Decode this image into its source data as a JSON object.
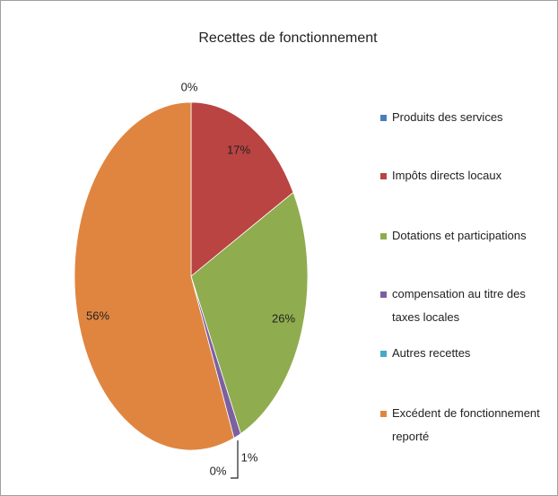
{
  "chart_data": {
    "type": "pie",
    "title": "Recettes de fonctionnement",
    "categories": [
      "Produits des services",
      "Impôts directs locaux",
      "Dotations et participations",
      "compensation au titre des taxes locales",
      "Autres recettes",
      "Excédent de fonctionnement reporté"
    ],
    "values": [
      0,
      17,
      26,
      1,
      0,
      56
    ],
    "value_labels": [
      "0%",
      "17%",
      "26%",
      "1%",
      "0%",
      "56%"
    ],
    "colors": [
      "#4a7ebb",
      "#b94441",
      "#8fac4f",
      "#7d60a0",
      "#46aac5",
      "#e0853f"
    ],
    "legend": "right"
  }
}
